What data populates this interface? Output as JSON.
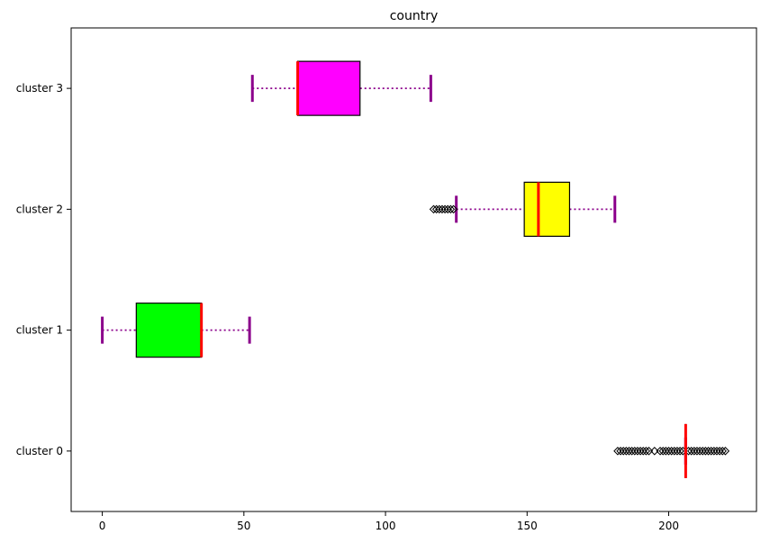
{
  "chart_data": {
    "type": "boxplot",
    "orientation": "horizontal",
    "title": "country",
    "xlabel": "",
    "ylabel": "",
    "xlim": [
      -11,
      231
    ],
    "xticks": [
      0,
      50,
      100,
      150,
      200
    ],
    "grid": false,
    "whisker_style": "dotted",
    "colors": {
      "whisker": "#8b008b",
      "median": "#ff0000",
      "box_edge": "#000000"
    },
    "categories": [
      "cluster 0",
      "cluster 1",
      "cluster 2",
      "cluster 3"
    ],
    "boxes": [
      {
        "label": "cluster 0",
        "whislo": 206,
        "q1": 206,
        "med": 206,
        "q3": 206,
        "whishi": 206,
        "fill": "#000000",
        "outliers": [
          182,
          183,
          184,
          185,
          186,
          187,
          188,
          189,
          190,
          191,
          192,
          193,
          195,
          197,
          198,
          199,
          200,
          201,
          202,
          203,
          204,
          205,
          207,
          208,
          209,
          210,
          211,
          212,
          213,
          214,
          215,
          216,
          217,
          218,
          219,
          220
        ]
      },
      {
        "label": "cluster 1",
        "whislo": 0,
        "q1": 12,
        "med": 35,
        "q3": 35,
        "whishi": 52,
        "fill": "#00ff00",
        "outliers": []
      },
      {
        "label": "cluster 2",
        "whislo": 125,
        "q1": 149,
        "med": 154,
        "q3": 165,
        "whishi": 181,
        "fill": "#ffff00",
        "outliers": [
          117,
          118,
          119,
          120,
          121,
          122,
          123,
          124
        ]
      },
      {
        "label": "cluster 3",
        "whislo": 53,
        "q1": 69,
        "med": 69,
        "q3": 91,
        "whishi": 116,
        "fill": "#ff00ff",
        "outliers": []
      }
    ]
  }
}
